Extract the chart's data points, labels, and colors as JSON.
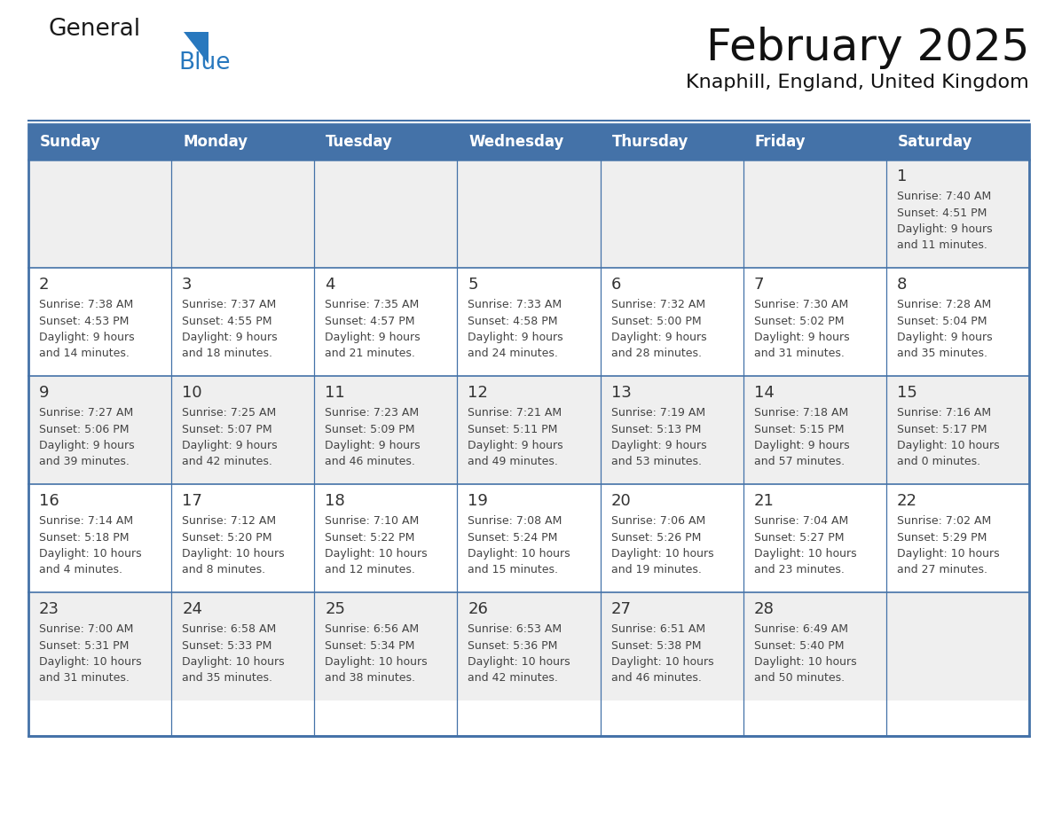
{
  "title": "February 2025",
  "subtitle": "Knaphill, England, United Kingdom",
  "header_color": "#4472a8",
  "header_text_color": "#ffffff",
  "border_color": "#4472a8",
  "text_color": "#333333",
  "info_color": "#444444",
  "day_headers": [
    "Sunday",
    "Monday",
    "Tuesday",
    "Wednesday",
    "Thursday",
    "Friday",
    "Saturday"
  ],
  "row_colors": [
    "#efefef",
    "#ffffff",
    "#efefef",
    "#ffffff",
    "#efefef"
  ],
  "weeks": [
    [
      {
        "day": null,
        "info": null
      },
      {
        "day": null,
        "info": null
      },
      {
        "day": null,
        "info": null
      },
      {
        "day": null,
        "info": null
      },
      {
        "day": null,
        "info": null
      },
      {
        "day": null,
        "info": null
      },
      {
        "day": "1",
        "info": "Sunrise: 7:40 AM\nSunset: 4:51 PM\nDaylight: 9 hours\nand 11 minutes."
      }
    ],
    [
      {
        "day": "2",
        "info": "Sunrise: 7:38 AM\nSunset: 4:53 PM\nDaylight: 9 hours\nand 14 minutes."
      },
      {
        "day": "3",
        "info": "Sunrise: 7:37 AM\nSunset: 4:55 PM\nDaylight: 9 hours\nand 18 minutes."
      },
      {
        "day": "4",
        "info": "Sunrise: 7:35 AM\nSunset: 4:57 PM\nDaylight: 9 hours\nand 21 minutes."
      },
      {
        "day": "5",
        "info": "Sunrise: 7:33 AM\nSunset: 4:58 PM\nDaylight: 9 hours\nand 24 minutes."
      },
      {
        "day": "6",
        "info": "Sunrise: 7:32 AM\nSunset: 5:00 PM\nDaylight: 9 hours\nand 28 minutes."
      },
      {
        "day": "7",
        "info": "Sunrise: 7:30 AM\nSunset: 5:02 PM\nDaylight: 9 hours\nand 31 minutes."
      },
      {
        "day": "8",
        "info": "Sunrise: 7:28 AM\nSunset: 5:04 PM\nDaylight: 9 hours\nand 35 minutes."
      }
    ],
    [
      {
        "day": "9",
        "info": "Sunrise: 7:27 AM\nSunset: 5:06 PM\nDaylight: 9 hours\nand 39 minutes."
      },
      {
        "day": "10",
        "info": "Sunrise: 7:25 AM\nSunset: 5:07 PM\nDaylight: 9 hours\nand 42 minutes."
      },
      {
        "day": "11",
        "info": "Sunrise: 7:23 AM\nSunset: 5:09 PM\nDaylight: 9 hours\nand 46 minutes."
      },
      {
        "day": "12",
        "info": "Sunrise: 7:21 AM\nSunset: 5:11 PM\nDaylight: 9 hours\nand 49 minutes."
      },
      {
        "day": "13",
        "info": "Sunrise: 7:19 AM\nSunset: 5:13 PM\nDaylight: 9 hours\nand 53 minutes."
      },
      {
        "day": "14",
        "info": "Sunrise: 7:18 AM\nSunset: 5:15 PM\nDaylight: 9 hours\nand 57 minutes."
      },
      {
        "day": "15",
        "info": "Sunrise: 7:16 AM\nSunset: 5:17 PM\nDaylight: 10 hours\nand 0 minutes."
      }
    ],
    [
      {
        "day": "16",
        "info": "Sunrise: 7:14 AM\nSunset: 5:18 PM\nDaylight: 10 hours\nand 4 minutes."
      },
      {
        "day": "17",
        "info": "Sunrise: 7:12 AM\nSunset: 5:20 PM\nDaylight: 10 hours\nand 8 minutes."
      },
      {
        "day": "18",
        "info": "Sunrise: 7:10 AM\nSunset: 5:22 PM\nDaylight: 10 hours\nand 12 minutes."
      },
      {
        "day": "19",
        "info": "Sunrise: 7:08 AM\nSunset: 5:24 PM\nDaylight: 10 hours\nand 15 minutes."
      },
      {
        "day": "20",
        "info": "Sunrise: 7:06 AM\nSunset: 5:26 PM\nDaylight: 10 hours\nand 19 minutes."
      },
      {
        "day": "21",
        "info": "Sunrise: 7:04 AM\nSunset: 5:27 PM\nDaylight: 10 hours\nand 23 minutes."
      },
      {
        "day": "22",
        "info": "Sunrise: 7:02 AM\nSunset: 5:29 PM\nDaylight: 10 hours\nand 27 minutes."
      }
    ],
    [
      {
        "day": "23",
        "info": "Sunrise: 7:00 AM\nSunset: 5:31 PM\nDaylight: 10 hours\nand 31 minutes."
      },
      {
        "day": "24",
        "info": "Sunrise: 6:58 AM\nSunset: 5:33 PM\nDaylight: 10 hours\nand 35 minutes."
      },
      {
        "day": "25",
        "info": "Sunrise: 6:56 AM\nSunset: 5:34 PM\nDaylight: 10 hours\nand 38 minutes."
      },
      {
        "day": "26",
        "info": "Sunrise: 6:53 AM\nSunset: 5:36 PM\nDaylight: 10 hours\nand 42 minutes."
      },
      {
        "day": "27",
        "info": "Sunrise: 6:51 AM\nSunset: 5:38 PM\nDaylight: 10 hours\nand 46 minutes."
      },
      {
        "day": "28",
        "info": "Sunrise: 6:49 AM\nSunset: 5:40 PM\nDaylight: 10 hours\nand 50 minutes."
      },
      {
        "day": null,
        "info": null
      }
    ]
  ],
  "logo_text_general": "General",
  "logo_text_blue": "Blue",
  "logo_color_general": "#1a1a1a",
  "logo_color_blue": "#2878be",
  "logo_triangle_color": "#2878be",
  "title_fontsize": 36,
  "subtitle_fontsize": 16,
  "header_fontsize": 12,
  "day_num_fontsize": 13,
  "info_fontsize": 9
}
